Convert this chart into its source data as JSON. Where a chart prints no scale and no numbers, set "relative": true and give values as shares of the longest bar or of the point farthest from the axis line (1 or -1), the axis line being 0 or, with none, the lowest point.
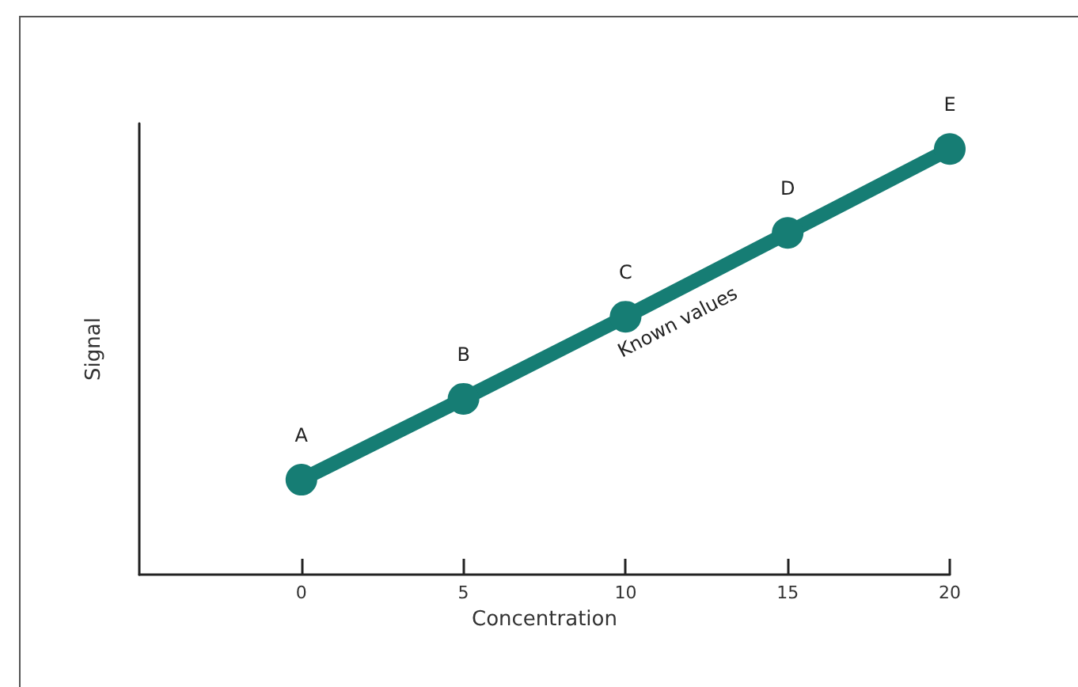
{
  "chart_data": {
    "type": "line",
    "xlabel": "Concentration",
    "ylabel": "Signal",
    "relative": true,
    "x": [
      0,
      5,
      10,
      15,
      20
    ],
    "series": [
      {
        "color": "#167d74",
        "values": [
          0.223,
          0.413,
          0.606,
          0.803,
          1
        ]
      }
    ],
    "xlim": [
      -5,
      20
    ],
    "xticks": [
      0,
      5,
      10,
      15,
      20
    ],
    "marker": "circle",
    "line_style": "solid",
    "annotations": [
      {
        "text": "A",
        "x": 0,
        "y": 0.223
      },
      {
        "text": "B",
        "x": 5,
        "y": 0.413
      },
      {
        "text": "C",
        "x": 10,
        "y": 0.606
      },
      {
        "text": "D",
        "x": 15,
        "y": 0.803
      },
      {
        "text": "E",
        "x": 20,
        "y": 1
      },
      "Known values"
    ]
  }
}
